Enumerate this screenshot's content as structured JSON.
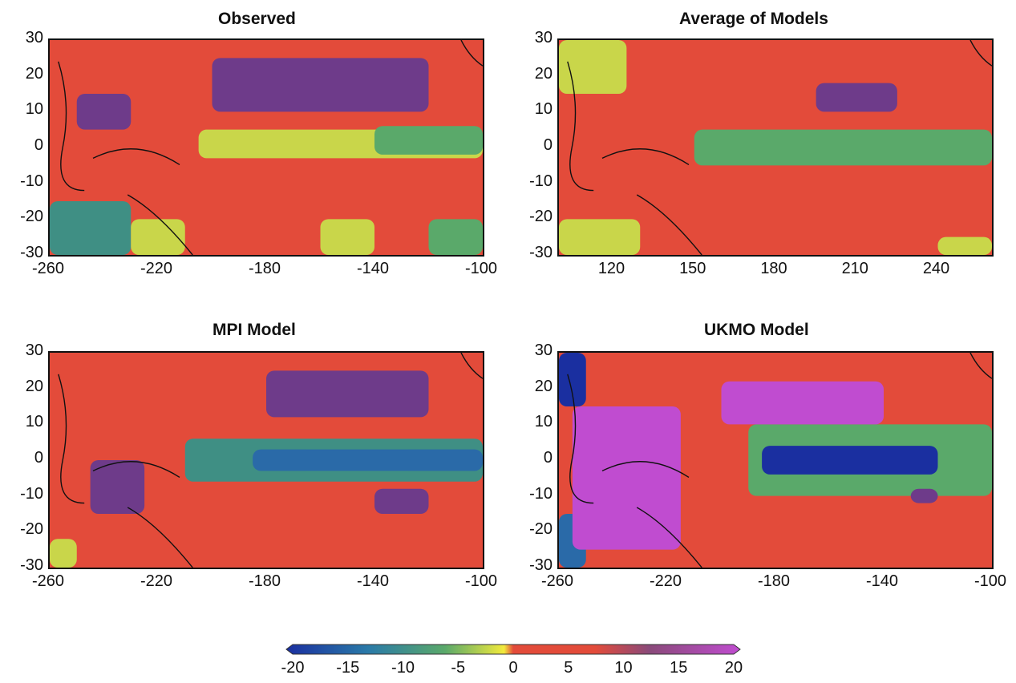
{
  "chart_data": [
    {
      "type": "heatmap",
      "title": "Observed",
      "x_ticks": [
        "-260",
        "-220",
        "-180",
        "-140",
        "-100"
      ],
      "y_ticks": [
        "30",
        "20",
        "10",
        "0",
        "-10",
        "-20",
        "-30"
      ],
      "xlim": [
        -260,
        -100
      ],
      "ylim": [
        -30,
        30
      ],
      "features": [
        {
          "x": [
            -260,
            -230
          ],
          "y": [
            -30,
            -15
          ],
          "value": -8
        },
        {
          "x": [
            -230,
            -210
          ],
          "y": [
            -30,
            -20
          ],
          "value": -3
        },
        {
          "x": [
            -205,
            -100
          ],
          "y": [
            -3,
            5
          ],
          "value": -3
        },
        {
          "x": [
            -140,
            -100
          ],
          "y": [
            -2,
            6
          ],
          "value": -6
        },
        {
          "x": [
            -200,
            -120
          ],
          "y": [
            10,
            25
          ],
          "value": 13
        },
        {
          "x": [
            -250,
            -230
          ],
          "y": [
            5,
            15
          ],
          "value": 12
        },
        {
          "x": [
            -160,
            -140
          ],
          "y": [
            -30,
            -20
          ],
          "value": -2
        },
        {
          "x": [
            -120,
            -100
          ],
          "y": [
            -30,
            -20
          ],
          "value": -5
        }
      ]
    },
    {
      "type": "heatmap",
      "title": "Average of Models",
      "x_ticks": [
        "120",
        "150",
        "180",
        "210",
        "240"
      ],
      "y_ticks": [
        "30",
        "20",
        "10",
        "0",
        "-10",
        "-20",
        "-30"
      ],
      "xlim": [
        100,
        260
      ],
      "ylim": [
        -30,
        30
      ],
      "features": [
        {
          "x": [
            150,
            260
          ],
          "y": [
            -5,
            5
          ],
          "value": -7
        },
        {
          "x": [
            195,
            225
          ],
          "y": [
            10,
            18
          ],
          "value": 13
        },
        {
          "x": [
            100,
            125
          ],
          "y": [
            15,
            30
          ],
          "value": -2
        },
        {
          "x": [
            100,
            130
          ],
          "y": [
            -30,
            -20
          ],
          "value": -2
        },
        {
          "x": [
            240,
            260
          ],
          "y": [
            -30,
            -25
          ],
          "value": -2
        }
      ]
    },
    {
      "type": "heatmap",
      "title": "MPI Model",
      "x_ticks": [
        "-260",
        "-220",
        "-180",
        "-140",
        "-100"
      ],
      "y_ticks": [
        "30",
        "20",
        "10",
        "0",
        "-10",
        "-20",
        "-30"
      ],
      "xlim": [
        -260,
        -100
      ],
      "ylim": [
        -30,
        30
      ],
      "features": [
        {
          "x": [
            -210,
            -100
          ],
          "y": [
            -6,
            6
          ],
          "value": -9
        },
        {
          "x": [
            -185,
            -100
          ],
          "y": [
            -3,
            3
          ],
          "value": -15
        },
        {
          "x": [
            -180,
            -120
          ],
          "y": [
            12,
            25
          ],
          "value": 13
        },
        {
          "x": [
            -245,
            -225
          ],
          "y": [
            -15,
            0
          ],
          "value": 12
        },
        {
          "x": [
            -140,
            -120
          ],
          "y": [
            -15,
            -8
          ],
          "value": 13
        },
        {
          "x": [
            -260,
            -250
          ],
          "y": [
            -30,
            -22
          ],
          "value": -3
        }
      ]
    },
    {
      "type": "heatmap",
      "title": "UKMO Model",
      "x_ticks": [
        "-260",
        "-220",
        "-180",
        "-140",
        "-100"
      ],
      "y_ticks": [
        "30",
        "20",
        "10",
        "0",
        "-10",
        "-20",
        "-30"
      ],
      "xlim": [
        -260,
        -100
      ],
      "ylim": [
        -30,
        30
      ],
      "features": [
        {
          "x": [
            -190,
            -100
          ],
          "y": [
            -10,
            10
          ],
          "value": -7
        },
        {
          "x": [
            -185,
            -120
          ],
          "y": [
            -4,
            4
          ],
          "value": -18
        },
        {
          "x": [
            -260,
            -250
          ],
          "y": [
            15,
            30
          ],
          "value": -18
        },
        {
          "x": [
            -260,
            -250
          ],
          "y": [
            -30,
            -15
          ],
          "value": -15
        },
        {
          "x": [
            -255,
            -215
          ],
          "y": [
            -25,
            15
          ],
          "value": 19
        },
        {
          "x": [
            -200,
            -140
          ],
          "y": [
            10,
            22
          ],
          "value": 17
        },
        {
          "x": [
            -130,
            -120
          ],
          "y": [
            -12,
            -8
          ],
          "value": 14
        }
      ]
    }
  ],
  "colorbar": {
    "tick_labels": [
      "-20",
      "-15",
      "-10",
      "-5",
      "0",
      "5",
      "10",
      "15",
      "20"
    ],
    "range": [
      -20,
      20
    ]
  },
  "colors": {
    "red": "#e34b3a",
    "yellow": "#f2ea3c",
    "green": "#5aa96a",
    "blue": "#1a3fa5",
    "purple": "#6e3b8a",
    "magenta": "#c04cd0"
  }
}
